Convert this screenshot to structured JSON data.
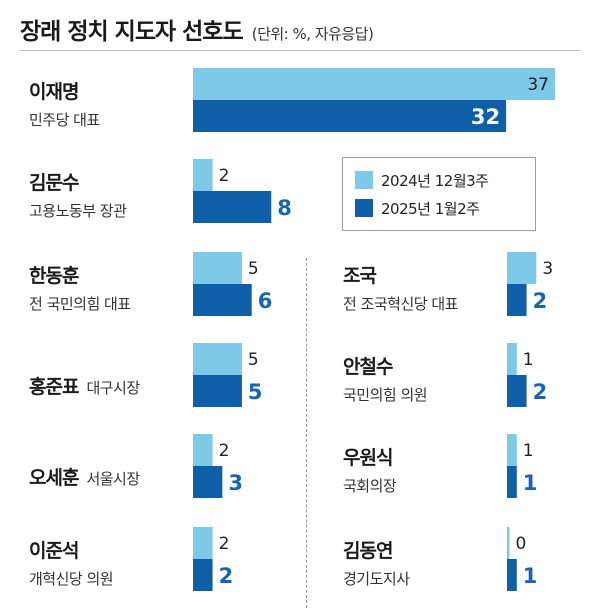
{
  "chart_data": {
    "type": "bar",
    "title": "장래 정치 지도자 선호도",
    "subtitle": "(단위: %, 자유응답)",
    "series": [
      {
        "name": "2024년 12월3주",
        "color": "#7ec8e8",
        "label_color": "#222222"
      },
      {
        "name": "2025년 1월2주",
        "color": "#0f5ea8",
        "label_color": "#1665b3"
      }
    ],
    "people": [
      {
        "name": "이재명",
        "role": "민주당 대표",
        "values": [
          37,
          32
        ]
      },
      {
        "name": "김문수",
        "role": "고용노동부 장관",
        "values": [
          2,
          8
        ]
      },
      {
        "name": "한동훈",
        "role": "전 국민의힘 대표",
        "values": [
          5,
          6
        ]
      },
      {
        "name": "홍준표",
        "role": "대구시장",
        "values": [
          5,
          5
        ]
      },
      {
        "name": "오세훈",
        "role": "서울시장",
        "values": [
          2,
          3
        ]
      },
      {
        "name": "이준석",
        "role": "개혁신당 의원",
        "values": [
          2,
          2
        ]
      },
      {
        "name": "조국",
        "role": "전 조국혁신당 대표",
        "values": [
          3,
          2
        ]
      },
      {
        "name": "안철수",
        "role": "국민의힘 의원",
        "values": [
          1,
          2
        ]
      },
      {
        "name": "우원식",
        "role": "국회의장",
        "values": [
          1,
          1
        ]
      },
      {
        "name": "김동연",
        "role": "경기도지사",
        "values": [
          0,
          1
        ]
      }
    ],
    "xlim": [
      0,
      37
    ]
  }
}
